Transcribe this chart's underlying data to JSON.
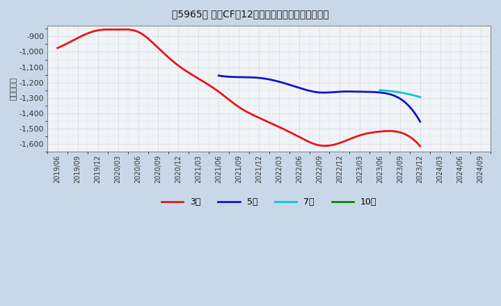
{
  "title": "［5965］ 投資CFの12か月移動合計の平均値の推移",
  "ylabel": "（百万円）",
  "fig_background_color": "#c8d8e8",
  "plot_background_color": "#f0f4f8",
  "ylim": [
    -1650,
    -830
  ],
  "yticks": [
    -1600,
    -1500,
    -1400,
    -1300,
    -1200,
    -1100,
    -1000,
    -900
  ],
  "series": {
    "3year": {
      "color": "#ee1111",
      "label": "3年",
      "points": [
        [
          "2019/06",
          -975
        ],
        [
          "2019/09",
          -910
        ],
        [
          "2019/12",
          -860
        ],
        [
          "2020/03",
          -855
        ],
        [
          "2020/06",
          -870
        ],
        [
          "2020/09",
          -975
        ],
        [
          "2020/12",
          -1090
        ],
        [
          "2021/03",
          -1175
        ],
        [
          "2021/06",
          -1260
        ],
        [
          "2021/09",
          -1360
        ],
        [
          "2021/12",
          -1430
        ],
        [
          "2022/03",
          -1490
        ],
        [
          "2022/06",
          -1555
        ],
        [
          "2022/09",
          -1610
        ],
        [
          "2022/12",
          -1595
        ],
        [
          "2023/03",
          -1545
        ],
        [
          "2023/06",
          -1520
        ],
        [
          "2023/09",
          -1525
        ],
        [
          "2023/12",
          -1615
        ]
      ]
    },
    "5year": {
      "color": "#1111cc",
      "label": "5年",
      "points": [
        [
          "2021/06",
          -1155
        ],
        [
          "2021/09",
          -1165
        ],
        [
          "2021/12",
          -1170
        ],
        [
          "2022/03",
          -1195
        ],
        [
          "2022/06",
          -1235
        ],
        [
          "2022/09",
          -1265
        ],
        [
          "2022/12",
          -1260
        ],
        [
          "2023/03",
          -1260
        ],
        [
          "2023/06",
          -1265
        ],
        [
          "2023/09",
          -1305
        ],
        [
          "2023/12",
          -1455
        ]
      ]
    },
    "7year": {
      "color": "#00cccc",
      "label": "7年",
      "points": [
        [
          "2023/06",
          -1250
        ],
        [
          "2023/09",
          -1265
        ],
        [
          "2023/12",
          -1295
        ]
      ]
    },
    "10year": {
      "color": "#008800",
      "label": "10年",
      "points": []
    }
  },
  "xtick_labels": [
    "2019/06",
    "2019/09",
    "2019/12",
    "2020/03",
    "2020/06",
    "2020/09",
    "2020/12",
    "2021/03",
    "2021/06",
    "2021/09",
    "2021/12",
    "2022/03",
    "2022/06",
    "2022/09",
    "2022/12",
    "2023/03",
    "2023/06",
    "2023/09",
    "2023/12",
    "2024/03",
    "2024/06",
    "2024/09"
  ]
}
